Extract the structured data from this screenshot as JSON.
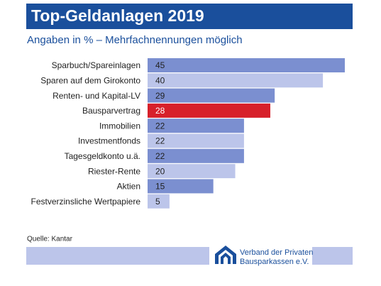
{
  "chart_data": {
    "type": "hbar",
    "title": "Top-Geldanlagen 2019",
    "subtitle": "Angaben in % – Mehrfachnennungen möglich",
    "categories": [
      "Sparbuch/Spareinlagen",
      "Sparen auf dem Girokonto",
      "Renten- und Kapital-LV",
      "Bausparvertrag",
      "Immobilien",
      "Investmentfonds",
      "Tagesgeldkonto u.ä.",
      "Riester-Rente",
      "Aktien",
      "Festverzinsliche Wertpapiere"
    ],
    "values": [
      45,
      40,
      29,
      28,
      22,
      22,
      22,
      20,
      15,
      5
    ],
    "colors": [
      "#7b8fd0",
      "#bcc5ea",
      "#7b8fd0",
      "#d7202a",
      "#7b8fd0",
      "#bcc5ea",
      "#7b8fd0",
      "#bcc5ea",
      "#7b8fd0",
      "#bcc5ea"
    ],
    "source": "Quelle: Kantar",
    "logo_text": [
      "Verband der Privaten",
      "Bausparkassen e.V."
    ]
  }
}
